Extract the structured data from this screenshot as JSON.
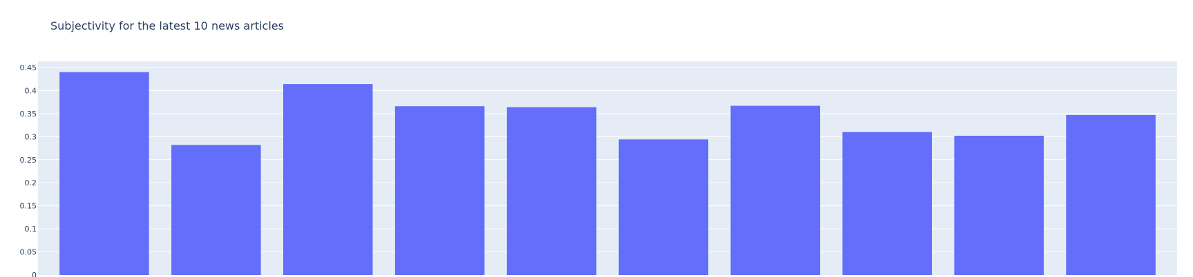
{
  "chart_data": {
    "type": "bar",
    "title": "Subjectivity for the latest 10 news articles",
    "xlabel": "",
    "ylabel": "",
    "categories": [
      "",
      "",
      "",
      "",
      "",
      "",
      "",
      "",
      "",
      ""
    ],
    "values": [
      0.44,
      0.282,
      0.414,
      0.366,
      0.364,
      0.294,
      0.367,
      0.31,
      0.302,
      0.347
    ],
    "ylim": [
      0,
      0.45
    ],
    "yticks": [
      0,
      0.05,
      0.1,
      0.15,
      0.2,
      0.25,
      0.3,
      0.35,
      0.4,
      0.45
    ],
    "ytick_labels": [
      "0",
      "0.05",
      "0.1",
      "0.15",
      "0.2",
      "0.25",
      "0.3",
      "0.35",
      "0.4",
      "0.45"
    ],
    "grid": true,
    "legend": "none",
    "colors": {
      "bar": "#636efa",
      "plot_background": "#e5ecf6",
      "gridline": "#ffffff",
      "text": "#2a3f5f"
    }
  }
}
